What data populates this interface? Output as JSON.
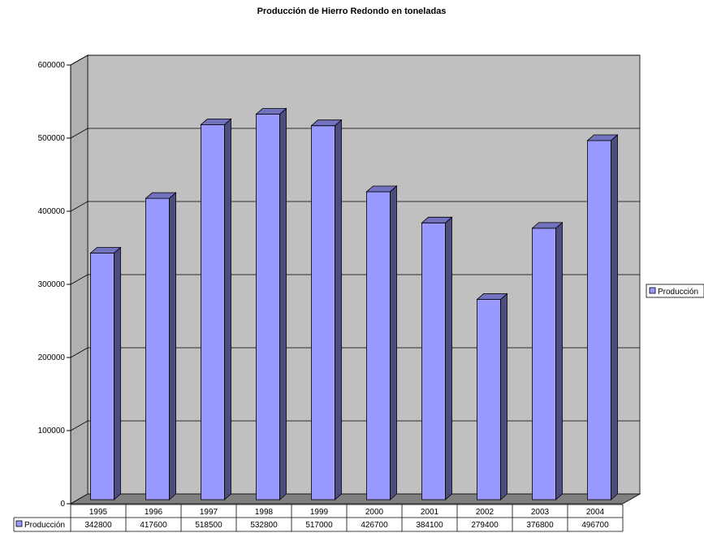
{
  "chart_data": {
    "type": "bar",
    "title": "Producción de Hierro Redondo en toneladas",
    "xlabel": "",
    "ylabel": "",
    "categories": [
      "1995",
      "1996",
      "1997",
      "1998",
      "1999",
      "2000",
      "2001",
      "2002",
      "2003",
      "2004"
    ],
    "series": [
      {
        "name": "Producción",
        "color": "#9999ff",
        "values": [
          342800,
          417600,
          518500,
          532800,
          517000,
          426700,
          384100,
          279400,
          376800,
          496700
        ]
      }
    ],
    "ylim": [
      0,
      600000
    ],
    "yticks": [
      "0",
      "100000",
      "200000",
      "300000",
      "400000",
      "500000",
      "600000"
    ],
    "grid": true,
    "legend": "right",
    "data_table": true,
    "style": "3d-column",
    "colors": {
      "bar_front": "#9999ff",
      "bar_side": "#4c4c80",
      "bar_top": "#7272bf",
      "wall": "#c0c0c0",
      "floor": "#808080"
    }
  }
}
